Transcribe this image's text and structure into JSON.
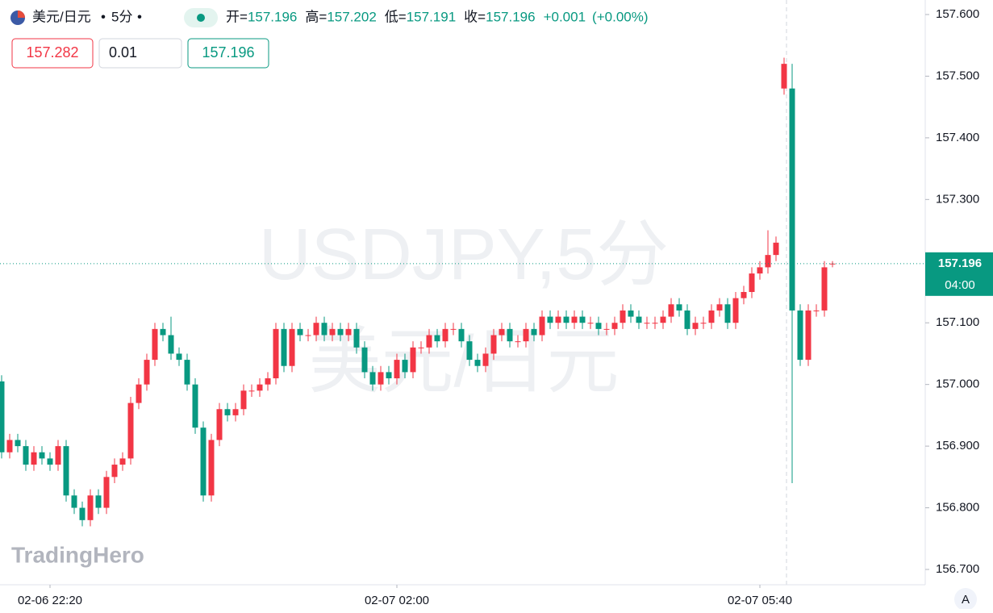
{
  "chart_data": {
    "type": "candlestick",
    "symbol": "美元/日元",
    "interval": "5分",
    "legend": [
      {
        "label": "开=",
        "value": "157.196"
      },
      {
        "label": "高=",
        "value": "157.202"
      },
      {
        "label": "低=",
        "value": "157.191"
      },
      {
        "label": "收=",
        "value": "157.196"
      }
    ],
    "change": "+0.001",
    "change_pct": "(+0.00%)",
    "watermark": [
      "USDJPY,5分",
      "美元/日元"
    ],
    "up_color": "#f23645",
    "down_color": "#089981",
    "last_price": 157.196,
    "last_price_label": "157.196",
    "countdown": "04:00",
    "ylim": [
      156.68,
      157.62
    ],
    "yticks": [
      {
        "value": 156.7,
        "label": "156.700"
      },
      {
        "value": 156.8,
        "label": "156.800"
      },
      {
        "value": 156.9,
        "label": "156.900"
      },
      {
        "value": 157.0,
        "label": "157.000"
      },
      {
        "value": 157.1,
        "label": "157.100"
      },
      {
        "value": 157.2,
        "label": "157.200"
      },
      {
        "value": 157.3,
        "label": "157.300"
      },
      {
        "value": 157.4,
        "label": "157.400"
      },
      {
        "value": 157.5,
        "label": "157.500"
      },
      {
        "value": 157.6,
        "label": "157.600"
      }
    ],
    "categories": [
      null,
      null,
      null,
      null,
      null,
      null,
      "02-06 22:20",
      null,
      null,
      null,
      null,
      null,
      null,
      null,
      null,
      null,
      null,
      null,
      null,
      null,
      null,
      null,
      null,
      null,
      null,
      null,
      null,
      null,
      null,
      null,
      null,
      null,
      null,
      null,
      null,
      null,
      null,
      null,
      null,
      null,
      null,
      null,
      null,
      null,
      null,
      null,
      null,
      null,
      null,
      "02-07 02:00",
      null,
      null,
      null,
      null,
      null,
      null,
      null,
      null,
      null,
      null,
      null,
      null,
      null,
      null,
      null,
      null,
      null,
      null,
      null,
      null,
      null,
      null,
      null,
      null,
      null,
      null,
      null,
      null,
      null,
      null,
      null,
      null,
      null,
      null,
      null,
      null,
      null,
      null,
      null,
      null,
      null,
      null,
      null,
      null,
      "02-07 05:40",
      null,
      null,
      null,
      null,
      null,
      null,
      null,
      null,
      null
    ],
    "open": [
      157.005,
      156.89,
      156.91,
      156.9,
      156.87,
      156.89,
      156.88,
      156.87,
      156.9,
      156.82,
      156.8,
      156.78,
      156.82,
      156.8,
      156.85,
      156.87,
      156.88,
      156.97,
      157.0,
      157.04,
      157.09,
      157.08,
      157.05,
      157.04,
      157.0,
      156.93,
      156.82,
      156.91,
      156.96,
      156.95,
      156.96,
      156.99,
      156.99,
      157.0,
      157.01,
      157.09,
      157.03,
      157.09,
      157.08,
      157.08,
      157.1,
      157.08,
      157.09,
      157.08,
      157.09,
      157.06,
      157.02,
      157.0,
      157.02,
      157.01,
      157.04,
      157.02,
      157.06,
      157.06,
      157.08,
      157.07,
      157.09,
      157.09,
      157.07,
      157.04,
      157.03,
      157.05,
      157.08,
      157.09,
      157.07,
      157.07,
      157.09,
      157.08,
      157.11,
      157.1,
      157.11,
      157.1,
      157.11,
      157.1,
      157.1,
      157.09,
      157.09,
      157.1,
      157.12,
      157.11,
      157.1,
      157.1,
      157.1,
      157.11,
      157.13,
      157.12,
      157.09,
      157.1,
      157.1,
      157.12,
      157.13,
      157.1,
      157.14,
      157.15,
      157.18,
      157.19,
      157.21,
      157.48,
      157.48,
      157.12,
      157.04,
      157.12,
      157.12,
      157.196
    ],
    "high": [
      157.015,
      156.92,
      156.92,
      156.91,
      156.9,
      156.9,
      156.89,
      156.91,
      156.91,
      156.83,
      156.81,
      156.83,
      156.83,
      156.86,
      156.88,
      156.89,
      156.98,
      157.01,
      157.05,
      157.1,
      157.1,
      157.11,
      157.06,
      157.05,
      157.01,
      156.94,
      156.92,
      156.97,
      156.97,
      156.97,
      157.0,
      157.0,
      157.01,
      157.02,
      157.1,
      157.1,
      157.1,
      157.1,
      157.09,
      157.11,
      157.11,
      157.1,
      157.1,
      157.1,
      157.1,
      157.07,
      157.03,
      157.03,
      157.03,
      157.05,
      157.05,
      157.07,
      157.07,
      157.09,
      157.09,
      157.1,
      157.1,
      157.1,
      157.08,
      157.05,
      157.06,
      157.09,
      157.1,
      157.1,
      157.08,
      157.1,
      157.1,
      157.12,
      157.12,
      157.12,
      157.12,
      157.12,
      157.12,
      157.11,
      157.11,
      157.1,
      157.11,
      157.13,
      157.13,
      157.12,
      157.11,
      157.11,
      157.12,
      157.14,
      157.14,
      157.13,
      157.11,
      157.11,
      157.13,
      157.14,
      157.14,
      157.15,
      157.16,
      157.19,
      157.2,
      157.25,
      157.24,
      157.53,
      157.52,
      157.13,
      157.13,
      157.13,
      157.2,
      157.2
    ],
    "low": [
      156.88,
      156.88,
      156.89,
      156.86,
      156.86,
      156.87,
      156.86,
      156.86,
      156.81,
      156.79,
      156.77,
      156.77,
      156.79,
      156.79,
      156.84,
      156.86,
      156.87,
      156.96,
      156.99,
      157.03,
      157.07,
      157.04,
      157.03,
      156.99,
      156.92,
      156.81,
      156.81,
      156.9,
      156.94,
      156.94,
      156.95,
      156.98,
      156.98,
      156.99,
      157.0,
      157.02,
      157.02,
      157.07,
      157.07,
      157.07,
      157.07,
      157.07,
      157.07,
      157.07,
      157.05,
      157.01,
      156.99,
      156.99,
      157.0,
      157.0,
      157.01,
      157.01,
      157.05,
      157.05,
      157.06,
      157.06,
      157.08,
      157.06,
      157.03,
      157.02,
      157.02,
      157.04,
      157.07,
      157.06,
      157.06,
      157.06,
      157.07,
      157.07,
      157.09,
      157.09,
      157.09,
      157.09,
      157.09,
      157.09,
      157.08,
      157.08,
      157.08,
      157.09,
      157.1,
      157.09,
      157.09,
      157.09,
      157.09,
      157.1,
      157.11,
      157.08,
      157.08,
      157.09,
      157.09,
      157.11,
      157.09,
      157.09,
      157.13,
      157.14,
      157.17,
      157.18,
      157.2,
      157.47,
      156.84,
      157.03,
      157.03,
      157.11,
      157.11,
      157.19
    ],
    "close": [
      156.89,
      156.91,
      156.9,
      156.87,
      156.89,
      156.88,
      156.87,
      156.9,
      156.82,
      156.8,
      156.78,
      156.82,
      156.8,
      156.85,
      156.87,
      156.88,
      156.97,
      157.0,
      157.04,
      157.09,
      157.08,
      157.05,
      157.04,
      157.0,
      156.93,
      156.82,
      156.91,
      156.96,
      156.95,
      156.96,
      156.99,
      156.99,
      157.0,
      157.01,
      157.09,
      157.03,
      157.09,
      157.08,
      157.08,
      157.1,
      157.08,
      157.09,
      157.08,
      157.09,
      157.06,
      157.02,
      157.0,
      157.02,
      157.01,
      157.04,
      157.02,
      157.06,
      157.06,
      157.08,
      157.07,
      157.09,
      157.09,
      157.07,
      157.04,
      157.03,
      157.05,
      157.08,
      157.09,
      157.07,
      157.07,
      157.09,
      157.08,
      157.11,
      157.1,
      157.11,
      157.1,
      157.11,
      157.1,
      157.1,
      157.09,
      157.09,
      157.1,
      157.12,
      157.11,
      157.1,
      157.1,
      157.1,
      157.11,
      157.13,
      157.12,
      157.09,
      157.1,
      157.1,
      157.12,
      157.13,
      157.1,
      157.14,
      157.15,
      157.18,
      157.19,
      157.21,
      157.23,
      157.52,
      157.12,
      157.04,
      157.12,
      157.12,
      157.19,
      157.196
    ]
  },
  "ui": {
    "buttons": [
      "157.282",
      "0.01",
      "157.196"
    ],
    "logo": "TradingHero",
    "scale_button": "A"
  }
}
